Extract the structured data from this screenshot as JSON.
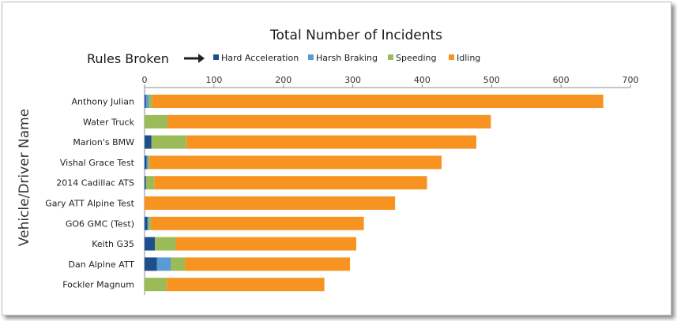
{
  "chart_data": {
    "type": "bar",
    "orientation": "horizontal",
    "stacked": true,
    "title": "Total Number of Incidents",
    "ylabel": "Vehicle/Driver Name",
    "legend_title": "Rules Broken",
    "legend_placement": "top",
    "xlim": [
      0,
      700
    ],
    "xticks": [
      0,
      100,
      200,
      300,
      400,
      500,
      600,
      700
    ],
    "grid": false,
    "categories": [
      "Anthony Julian",
      "Water Truck",
      "Marion's BMW",
      "Vishal Grace Test",
      "2014 Cadillac ATS",
      "Gary ATT Alpine Test",
      "GO6 GMC (Test)",
      "Keith G35",
      "Dan Alpine ATT",
      "Fockler Magnum"
    ],
    "series": [
      {
        "name": "Hard Acceleration",
        "color": "#1f4e8c",
        "values": [
          2,
          0,
          10,
          3,
          2,
          0,
          4,
          15,
          18,
          0
        ]
      },
      {
        "name": "Harsh Braking",
        "color": "#5b9bd5",
        "values": [
          4,
          0,
          0,
          2,
          0,
          0,
          2,
          0,
          20,
          0
        ]
      },
      {
        "name": "Speeding",
        "color": "#9bbb59",
        "values": [
          5,
          33,
          50,
          2,
          12,
          0,
          3,
          30,
          20,
          32
        ]
      },
      {
        "name": "Idling",
        "color": "#f79421",
        "values": [
          650,
          466,
          418,
          421,
          393,
          361,
          307,
          260,
          238,
          227
        ]
      }
    ]
  }
}
